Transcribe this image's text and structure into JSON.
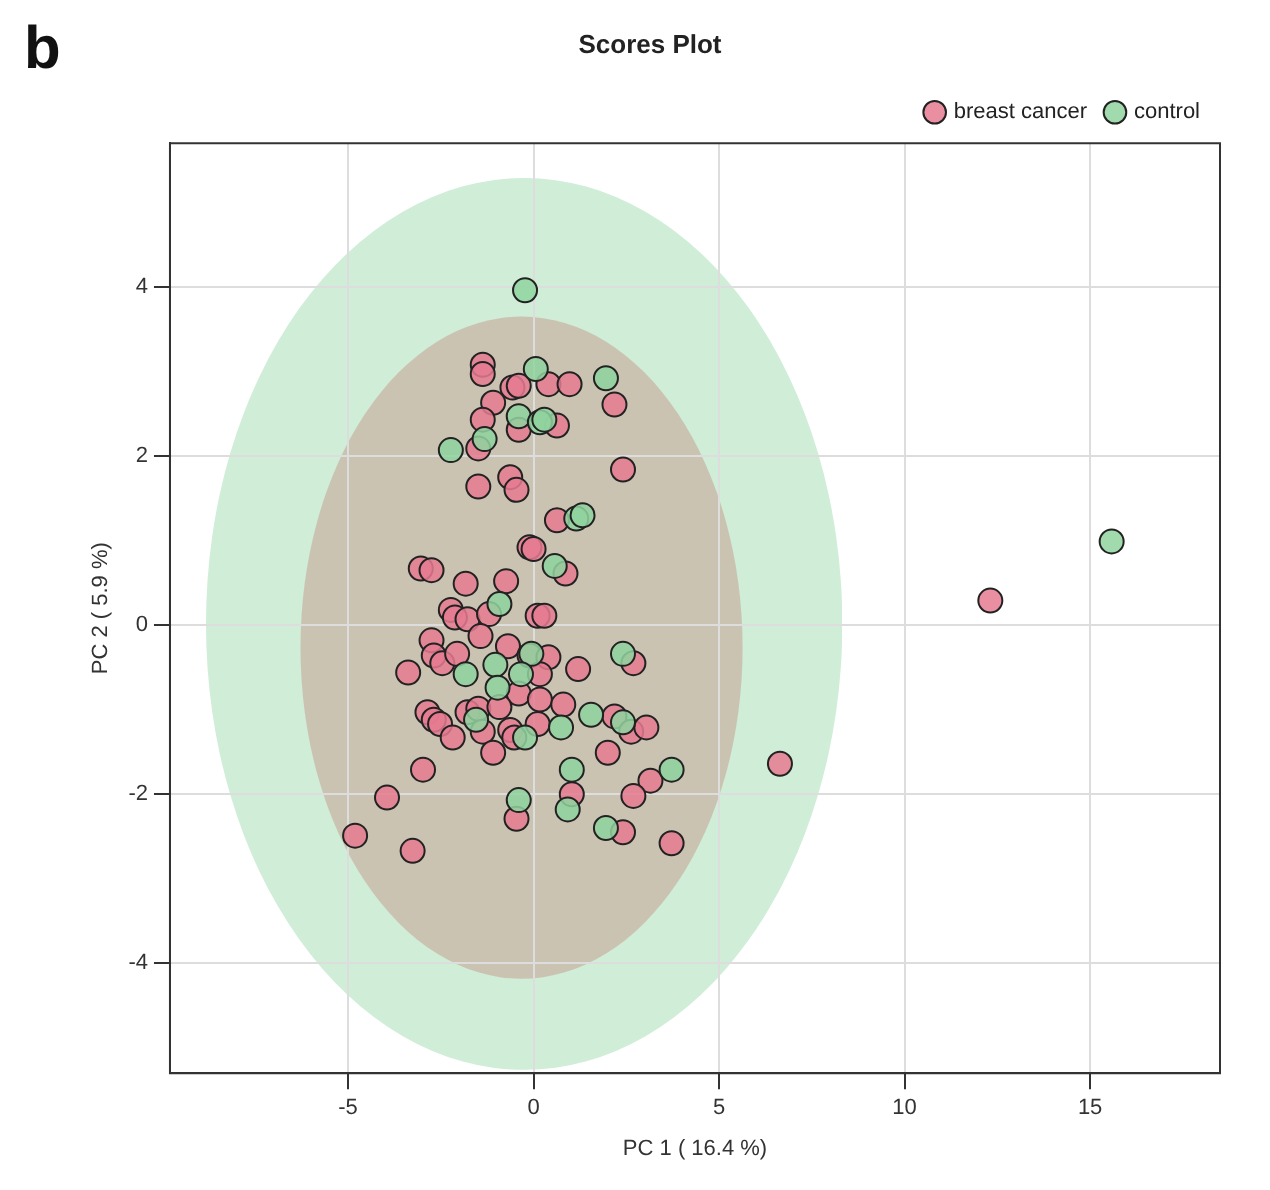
{
  "chart_data": {
    "type": "scatter",
    "title": "Scores Plot",
    "xlabel": "PC 1 ( 16.4 %)",
    "ylabel": "PC 2 ( 5.9 %)",
    "annotations": [
      "b"
    ],
    "xlim": [
      -9.8,
      18.5
    ],
    "ylim": [
      -5.3,
      5.7
    ],
    "xticks": [
      -5,
      0,
      5,
      10,
      15
    ],
    "yticks": [
      -4,
      -2,
      0,
      2,
      4
    ],
    "grid": true,
    "legend": "top right",
    "marker": "circle",
    "series": [
      {
        "name": "breast cancer",
        "color": "#e67a90",
        "x": [
          -1.37,
          -1.37,
          -0.57,
          -0.4,
          0.4,
          0.97,
          2.18,
          -1.09,
          -1.37,
          -0.4,
          0.63,
          -1.49,
          2.41,
          -1.49,
          -0.63,
          -0.46,
          0.63,
          -0.11,
          0,
          -3.04,
          -2.75,
          -1.83,
          -0.74,
          0.86,
          -2.23,
          -2.12,
          -1.78,
          -1.2,
          0.11,
          0.29,
          -2.75,
          -2.69,
          -2.46,
          -2.06,
          -1.43,
          -3.38,
          -0.69,
          -0.11,
          0.4,
          0.17,
          1.2,
          2.69,
          -0.4,
          0.17,
          0.8,
          -2.86,
          -2.69,
          -2.52,
          -1.78,
          -1.49,
          -0.92,
          -2.18,
          -1.37,
          -0.63,
          0.11,
          -0.52,
          2.18,
          2.63,
          3.04,
          2,
          -1.09,
          -2.98,
          -3.95,
          3.15,
          2.69,
          1.03,
          -0.46,
          -4.81,
          -3.26,
          2.41,
          3.72,
          6.64,
          12.31
        ],
        "values": [
          3.08,
          2.97,
          2.81,
          2.83,
          2.85,
          2.85,
          2.61,
          2.63,
          2.43,
          2.31,
          2.36,
          2.09,
          1.84,
          1.64,
          1.75,
          1.6,
          1.24,
          0.92,
          0.9,
          0.67,
          0.65,
          0.49,
          0.52,
          0.61,
          0.18,
          0.09,
          0.07,
          0.13,
          0.11,
          0.11,
          -0.18,
          -0.36,
          -0.45,
          -0.34,
          -0.13,
          -0.56,
          -0.25,
          -0.36,
          -0.38,
          -0.58,
          -0.52,
          -0.45,
          -0.81,
          -0.88,
          -0.94,
          -1.03,
          -1.12,
          -1.17,
          -1.03,
          -0.99,
          -0.97,
          -1.33,
          -1.26,
          -1.24,
          -1.17,
          -1.33,
          -1.08,
          -1.26,
          -1.21,
          -1.51,
          -1.51,
          -1.71,
          -2.04,
          -1.84,
          -2.02,
          -2,
          -2.29,
          -2.49,
          -2.67,
          -2.45,
          -2.58,
          -1.64,
          0.29
        ]
      },
      {
        "name": "control",
        "color": "#8fd49f",
        "x": [
          -0.23,
          0.06,
          1.95,
          -0.4,
          0.17,
          0.29,
          -1.32,
          -2.23,
          1.15,
          1.32,
          0.57,
          -0.92,
          -1.03,
          -1.83,
          -0.06,
          -0.34,
          -0.97,
          2.41,
          1.55,
          2.41,
          0.74,
          -1.55,
          -0.23,
          1.03,
          3.72,
          -0.4,
          0.92,
          1.95,
          15.58
        ],
        "values": [
          3.96,
          3.03,
          2.92,
          2.47,
          2.4,
          2.43,
          2.2,
          2.07,
          1.26,
          1.3,
          0.7,
          0.25,
          -0.47,
          -0.58,
          -0.34,
          -0.58,
          -0.74,
          -0.34,
          -1.06,
          -1.15,
          -1.21,
          -1.12,
          -1.33,
          -1.71,
          -1.71,
          -2.07,
          -2.18,
          -2.4,
          0.99
        ]
      }
    ]
  }
}
